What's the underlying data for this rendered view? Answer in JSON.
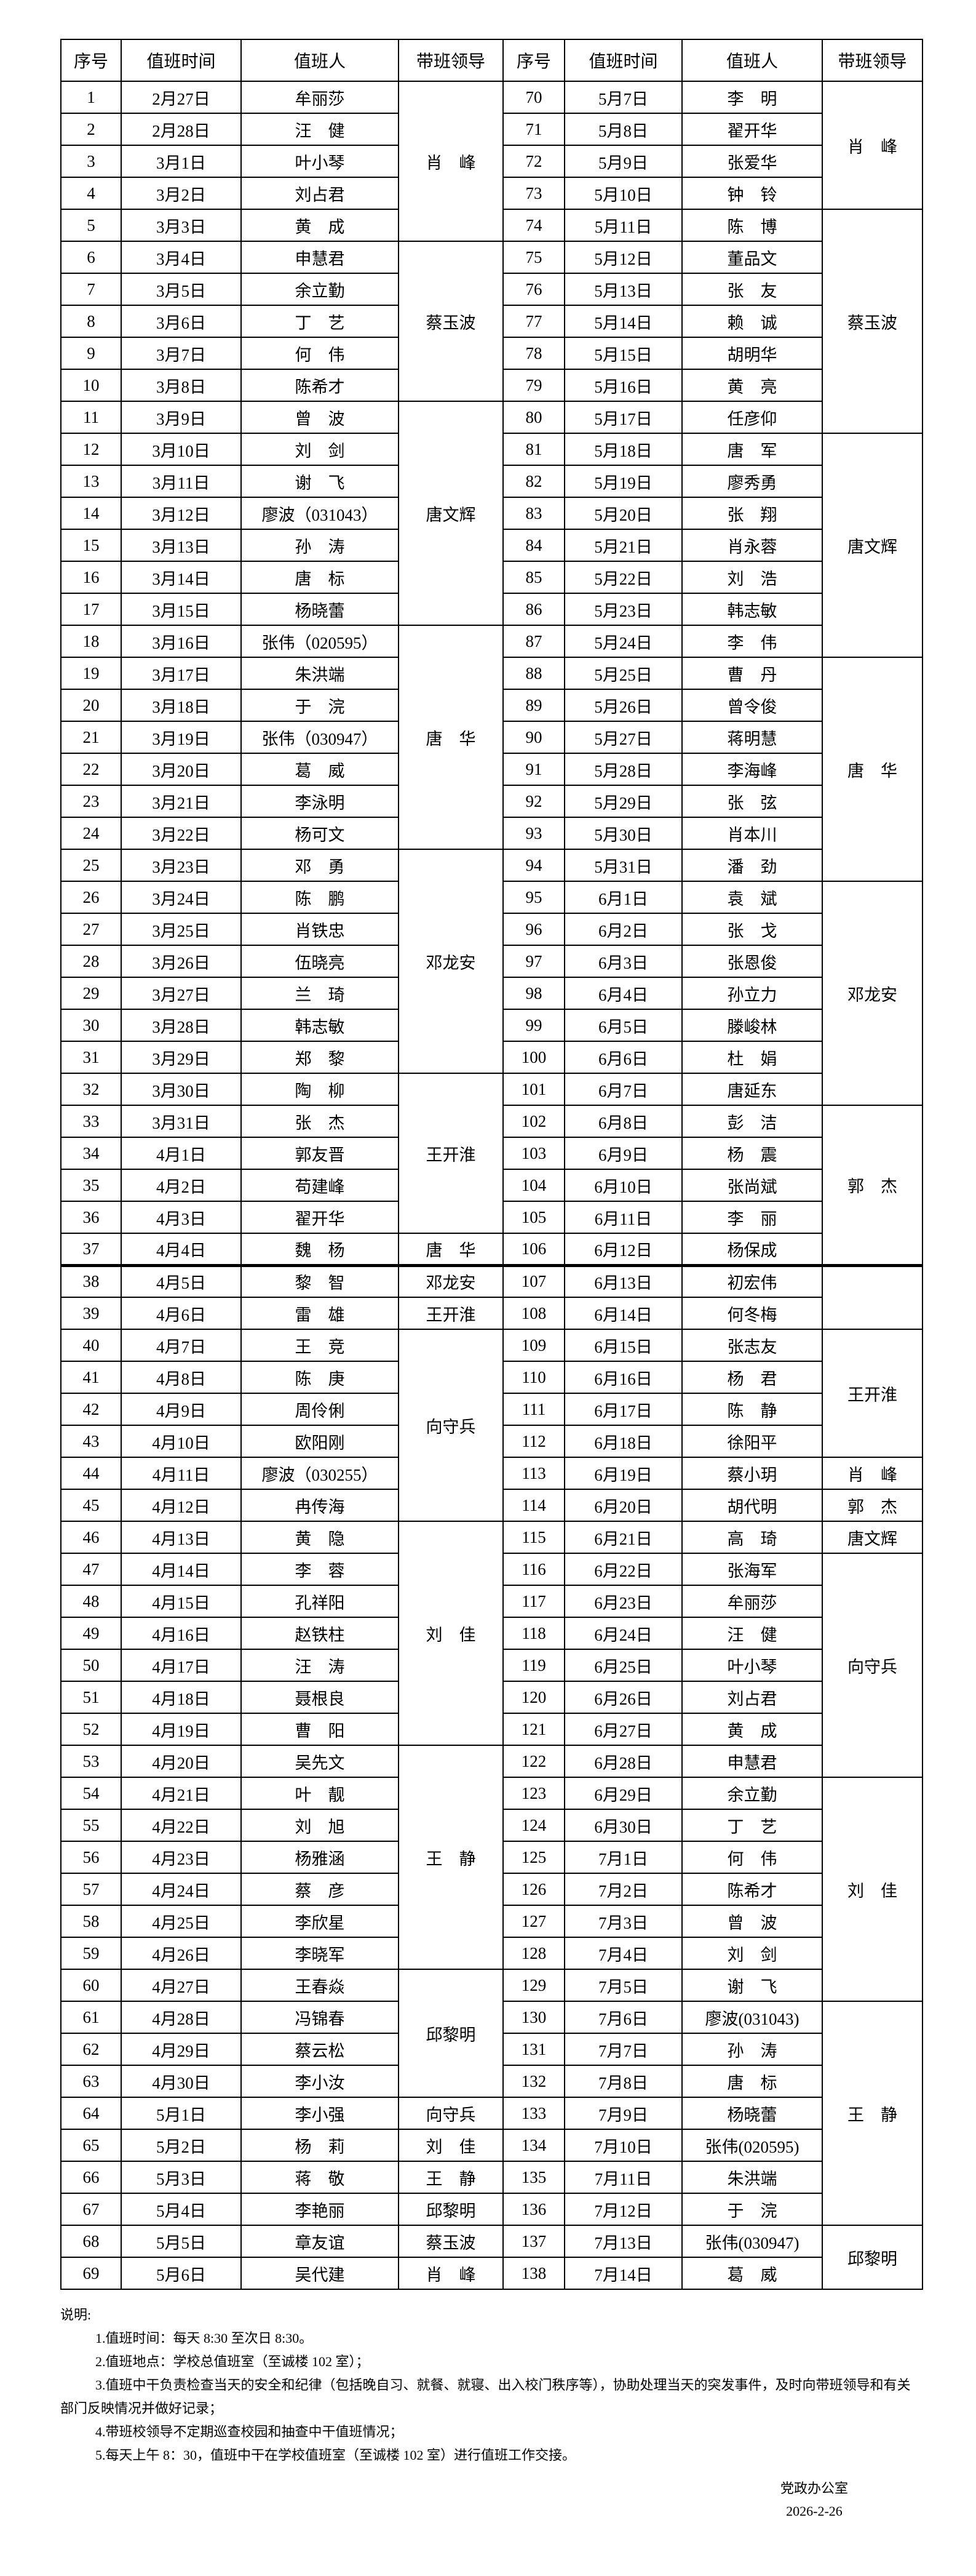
{
  "table": {
    "headers": [
      "序号",
      "值班时间",
      "值班人",
      "带班领导"
    ],
    "page_break_after_row": 37,
    "left": {
      "rows": [
        [
          "1",
          "2月27日",
          "牟丽莎"
        ],
        [
          "2",
          "2月28日",
          "汪　健"
        ],
        [
          "3",
          "3月1日",
          "叶小琴"
        ],
        [
          "4",
          "3月2日",
          "刘占君"
        ],
        [
          "5",
          "3月3日",
          "黄　成"
        ],
        [
          "6",
          "3月4日",
          "申慧君"
        ],
        [
          "7",
          "3月5日",
          "余立勤"
        ],
        [
          "8",
          "3月6日",
          "丁　艺"
        ],
        [
          "9",
          "3月7日",
          "何　伟"
        ],
        [
          "10",
          "3月8日",
          "陈希才"
        ],
        [
          "11",
          "3月9日",
          "曾　波"
        ],
        [
          "12",
          "3月10日",
          "刘　剑"
        ],
        [
          "13",
          "3月11日",
          "谢　飞"
        ],
        [
          "14",
          "3月12日",
          "廖波（031043）"
        ],
        [
          "15",
          "3月13日",
          "孙　涛"
        ],
        [
          "16",
          "3月14日",
          "唐　标"
        ],
        [
          "17",
          "3月15日",
          "杨晓蕾"
        ],
        [
          "18",
          "3月16日",
          "张伟（020595）"
        ],
        [
          "19",
          "3月17日",
          "朱洪端"
        ],
        [
          "20",
          "3月18日",
          "于　浣"
        ],
        [
          "21",
          "3月19日",
          "张伟（030947）"
        ],
        [
          "22",
          "3月20日",
          "葛　威"
        ],
        [
          "23",
          "3月21日",
          "李泳明"
        ],
        [
          "24",
          "3月22日",
          "杨可文"
        ],
        [
          "25",
          "3月23日",
          "邓　勇"
        ],
        [
          "26",
          "3月24日",
          "陈　鹏"
        ],
        [
          "27",
          "3月25日",
          "肖铁忠"
        ],
        [
          "28",
          "3月26日",
          "伍晓亮"
        ],
        [
          "29",
          "3月27日",
          "兰　琦"
        ],
        [
          "30",
          "3月28日",
          "韩志敏"
        ],
        [
          "31",
          "3月29日",
          "郑　黎"
        ],
        [
          "32",
          "3月30日",
          "陶　柳"
        ],
        [
          "33",
          "3月31日",
          "张　杰"
        ],
        [
          "34",
          "4月1日",
          "郭友晋"
        ],
        [
          "35",
          "4月2日",
          "苟建峰"
        ],
        [
          "36",
          "4月3日",
          "翟开华"
        ],
        [
          "37",
          "4月4日",
          "魏　杨"
        ],
        [
          "38",
          "4月5日",
          "黎　智"
        ],
        [
          "39",
          "4月6日",
          "雷　雄"
        ],
        [
          "40",
          "4月7日",
          "王　竞"
        ],
        [
          "41",
          "4月8日",
          "陈　庚"
        ],
        [
          "42",
          "4月9日",
          "周伶俐"
        ],
        [
          "43",
          "4月10日",
          "欧阳刚"
        ],
        [
          "44",
          "4月11日",
          "廖波（030255）"
        ],
        [
          "45",
          "4月12日",
          "冉传海"
        ],
        [
          "46",
          "4月13日",
          "黄　隐"
        ],
        [
          "47",
          "4月14日",
          "李　蓉"
        ],
        [
          "48",
          "4月15日",
          "孔祥阳"
        ],
        [
          "49",
          "4月16日",
          "赵铁柱"
        ],
        [
          "50",
          "4月17日",
          "汪　涛"
        ],
        [
          "51",
          "4月18日",
          "聂根良"
        ],
        [
          "52",
          "4月19日",
          "曹　阳"
        ],
        [
          "53",
          "4月20日",
          "吴先文"
        ],
        [
          "54",
          "4月21日",
          "叶　靓"
        ],
        [
          "55",
          "4月22日",
          "刘　旭"
        ],
        [
          "56",
          "4月23日",
          "杨雅涵"
        ],
        [
          "57",
          "4月24日",
          "蔡　彦"
        ],
        [
          "58",
          "4月25日",
          "李欣星"
        ],
        [
          "59",
          "4月26日",
          "李晓军"
        ],
        [
          "60",
          "4月27日",
          "王春焱"
        ],
        [
          "61",
          "4月28日",
          "冯锦春"
        ],
        [
          "62",
          "4月29日",
          "蔡云松"
        ],
        [
          "63",
          "4月30日",
          "李小汝"
        ],
        [
          "64",
          "5月1日",
          "李小强"
        ],
        [
          "65",
          "5月2日",
          "杨　莉"
        ],
        [
          "66",
          "5月3日",
          "蒋　敬"
        ],
        [
          "67",
          "5月4日",
          "李艳丽"
        ],
        [
          "68",
          "5月5日",
          "章友谊"
        ],
        [
          "69",
          "5月6日",
          "吴代建"
        ]
      ],
      "groups": [
        [
          1,
          5,
          "肖　峰"
        ],
        [
          6,
          5,
          "蔡玉波"
        ],
        [
          11,
          7,
          "唐文辉"
        ],
        [
          18,
          7,
          "唐　华"
        ],
        [
          25,
          7,
          "邓龙安"
        ],
        [
          32,
          5,
          "王开淮"
        ],
        [
          37,
          1,
          "唐　华"
        ],
        [
          38,
          1,
          "邓龙安"
        ],
        [
          39,
          1,
          "王开淮"
        ],
        [
          40,
          6,
          "向守兵"
        ],
        [
          46,
          7,
          "刘　佳"
        ],
        [
          53,
          7,
          "王　静"
        ],
        [
          60,
          4,
          "邱黎明"
        ],
        [
          64,
          1,
          "向守兵"
        ],
        [
          65,
          1,
          "刘　佳"
        ],
        [
          66,
          1,
          "王　静"
        ],
        [
          67,
          1,
          "邱黎明"
        ],
        [
          68,
          1,
          "蔡玉波"
        ],
        [
          69,
          1,
          "肖　峰"
        ]
      ]
    },
    "right": {
      "rows": [
        [
          "70",
          "5月7日",
          "李　明"
        ],
        [
          "71",
          "5月8日",
          "翟开华"
        ],
        [
          "72",
          "5月9日",
          "张爱华"
        ],
        [
          "73",
          "5月10日",
          "钟　铃"
        ],
        [
          "74",
          "5月11日",
          "陈　博"
        ],
        [
          "75",
          "5月12日",
          "董品文"
        ],
        [
          "76",
          "5月13日",
          "张　友"
        ],
        [
          "77",
          "5月14日",
          "赖　诚"
        ],
        [
          "78",
          "5月15日",
          "胡明华"
        ],
        [
          "79",
          "5月16日",
          "黄　亮"
        ],
        [
          "80",
          "5月17日",
          "任彦仰"
        ],
        [
          "81",
          "5月18日",
          "唐　军"
        ],
        [
          "82",
          "5月19日",
          "廖秀勇"
        ],
        [
          "83",
          "5月20日",
          "张　翔"
        ],
        [
          "84",
          "5月21日",
          "肖永蓉"
        ],
        [
          "85",
          "5月22日",
          "刘　浩"
        ],
        [
          "86",
          "5月23日",
          "韩志敏"
        ],
        [
          "87",
          "5月24日",
          "李　伟"
        ],
        [
          "88",
          "5月25日",
          "曹　丹"
        ],
        [
          "89",
          "5月26日",
          "曾令俊"
        ],
        [
          "90",
          "5月27日",
          "蒋明慧"
        ],
        [
          "91",
          "5月28日",
          "李海峰"
        ],
        [
          "92",
          "5月29日",
          "张　弦"
        ],
        [
          "93",
          "5月30日",
          "肖本川"
        ],
        [
          "94",
          "5月31日",
          "潘　劲"
        ],
        [
          "95",
          "6月1日",
          "袁　斌"
        ],
        [
          "96",
          "6月2日",
          "张　戈"
        ],
        [
          "97",
          "6月3日",
          "张恩俊"
        ],
        [
          "98",
          "6月4日",
          "孙立力"
        ],
        [
          "99",
          "6月5日",
          "滕峻林"
        ],
        [
          "100",
          "6月6日",
          "杜　娟"
        ],
        [
          "101",
          "6月7日",
          "唐延东"
        ],
        [
          "102",
          "6月8日",
          "彭　洁"
        ],
        [
          "103",
          "6月9日",
          "杨　震"
        ],
        [
          "104",
          "6月10日",
          "张尚斌"
        ],
        [
          "105",
          "6月11日",
          "李　丽"
        ],
        [
          "106",
          "6月12日",
          "杨保成"
        ],
        [
          "107",
          "6月13日",
          "初宏伟"
        ],
        [
          "108",
          "6月14日",
          "何冬梅"
        ],
        [
          "109",
          "6月15日",
          "张志友"
        ],
        [
          "110",
          "6月16日",
          "杨　君"
        ],
        [
          "111",
          "6月17日",
          "陈　静"
        ],
        [
          "112",
          "6月18日",
          "徐阳平"
        ],
        [
          "113",
          "6月19日",
          "蔡小玥"
        ],
        [
          "114",
          "6月20日",
          "胡代明"
        ],
        [
          "115",
          "6月21日",
          "高　琦"
        ],
        [
          "116",
          "6月22日",
          "张海军"
        ],
        [
          "117",
          "6月23日",
          "牟丽莎"
        ],
        [
          "118",
          "6月24日",
          "汪　健"
        ],
        [
          "119",
          "6月25日",
          "叶小琴"
        ],
        [
          "120",
          "6月26日",
          "刘占君"
        ],
        [
          "121",
          "6月27日",
          "黄　成"
        ],
        [
          "122",
          "6月28日",
          "申慧君"
        ],
        [
          "123",
          "6月29日",
          "余立勤"
        ],
        [
          "124",
          "6月30日",
          "丁　艺"
        ],
        [
          "125",
          "7月1日",
          "何　伟"
        ],
        [
          "126",
          "7月2日",
          "陈希才"
        ],
        [
          "127",
          "7月3日",
          "曾　波"
        ],
        [
          "128",
          "7月4日",
          "刘　剑"
        ],
        [
          "129",
          "7月5日",
          "谢　飞"
        ],
        [
          "130",
          "7月6日",
          "廖波(031043)"
        ],
        [
          "131",
          "7月7日",
          "孙　涛"
        ],
        [
          "132",
          "7月8日",
          "唐　标"
        ],
        [
          "133",
          "7月9日",
          "杨晓蕾"
        ],
        [
          "134",
          "7月10日",
          "张伟(020595)"
        ],
        [
          "135",
          "7月11日",
          "朱洪端"
        ],
        [
          "136",
          "7月12日",
          "于　浣"
        ],
        [
          "137",
          "7月13日",
          "张伟(030947)"
        ],
        [
          "138",
          "7月14日",
          "葛　威"
        ]
      ],
      "groups": [
        [
          1,
          4,
          "肖　峰"
        ],
        [
          5,
          7,
          "蔡玉波"
        ],
        [
          12,
          7,
          "唐文辉"
        ],
        [
          19,
          7,
          "唐　华"
        ],
        [
          26,
          7,
          "邓龙安"
        ],
        [
          33,
          5,
          "郭　杰"
        ],
        [
          38,
          2,
          ""
        ],
        [
          40,
          4,
          "王开淮"
        ],
        [
          44,
          1,
          "肖　峰"
        ],
        [
          45,
          1,
          "郭　杰"
        ],
        [
          46,
          1,
          "唐文辉"
        ],
        [
          47,
          7,
          "向守兵"
        ],
        [
          54,
          7,
          "刘　佳"
        ],
        [
          61,
          7,
          "王　静"
        ],
        [
          68,
          2,
          "邱黎明"
        ]
      ]
    }
  },
  "notes": {
    "heading": "说明:",
    "items": [
      "1.值班时间：每天 8:30 至次日 8:30。",
      "2.值班地点：学校总值班室（至诚楼 102 室）；",
      "3.值班中干负责检查当天的安全和纪律（包括晚自习、就餐、就寝、出入校门秩序等），协助处理当天的突发事件，及时向带班领导和有关部门反映情况并做好记录；",
      "4.带班校领导不定期巡查校园和抽查中干值班情况；",
      "5.每天上午 8：30，值班中干在学校值班室（至诚楼 102 室）进行值班工作交接。"
    ]
  },
  "signature": {
    "org": "党政办公室",
    "date": "2026-2-26"
  }
}
